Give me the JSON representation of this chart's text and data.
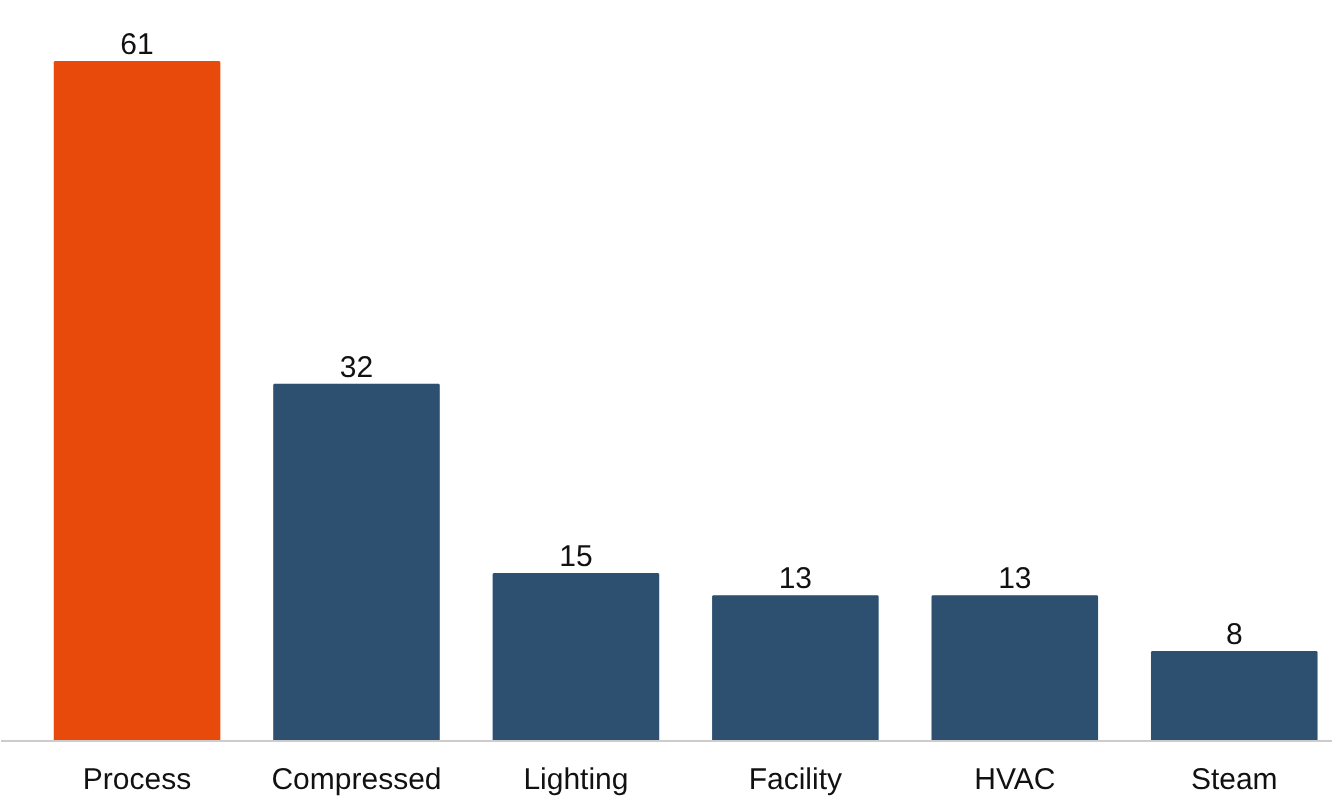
{
  "chart_data": {
    "type": "bar",
    "categories": [
      "Process",
      "Compressed",
      "Lighting",
      "Facility",
      "HVAC",
      "Steam"
    ],
    "values": [
      61,
      32,
      15,
      13,
      13,
      8
    ],
    "colors": [
      "#e84a0c",
      "#2d5070",
      "#2d5070",
      "#2d5070",
      "#2d5070",
      "#2d5070"
    ],
    "data_labels": true
  }
}
